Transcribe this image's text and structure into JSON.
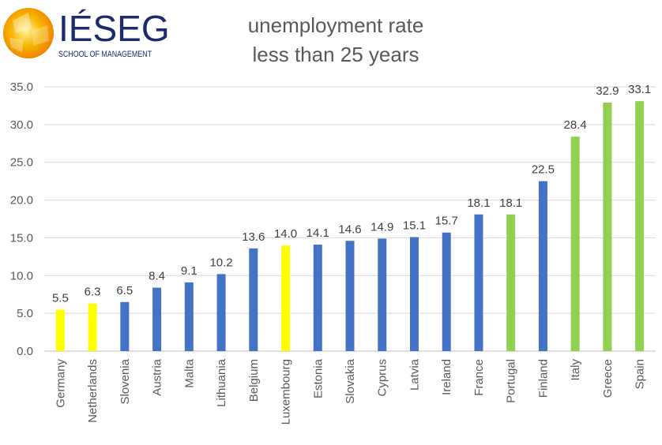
{
  "logo": {
    "brand": "IÉSEG",
    "subtitle": "SCHOOL OF MANAGEMENT"
  },
  "chart_data": {
    "type": "bar",
    "title": "unemployment rate",
    "subtitle": "less than 25 years",
    "xlabel": "",
    "ylabel": "",
    "ylim": [
      0,
      35
    ],
    "yticks": [
      "0.0",
      "5.0",
      "10.0",
      "15.0",
      "20.0",
      "25.0",
      "30.0",
      "35.0"
    ],
    "grid": true,
    "legend": "none",
    "data_labels": true,
    "categories": [
      "Germany",
      "Netherlands",
      "Slovenia",
      "Austria",
      "Malta",
      "Lithuania",
      "Belgium",
      "Luxembourg",
      "Estonia",
      "Slovakia",
      "Cyprus",
      "Latvia",
      "Ireland",
      "France",
      "Portugal",
      "Finland",
      "Italy",
      "Greece",
      "Spain"
    ],
    "values": [
      5.5,
      6.3,
      6.5,
      8.4,
      9.1,
      10.2,
      13.6,
      14.0,
      14.1,
      14.6,
      14.9,
      15.1,
      15.7,
      18.1,
      18.1,
      22.5,
      28.4,
      32.9,
      33.1
    ],
    "value_labels": [
      "5.5",
      "6.3",
      "6.5",
      "8.4",
      "9.1",
      "10.2",
      "13.6",
      "14.0",
      "14.1",
      "14.6",
      "14.9",
      "15.1",
      "15.7",
      "18.1",
      "18.1",
      "22.5",
      "28.4",
      "32.9",
      "33.1"
    ],
    "bar_colors": [
      "#ffff00",
      "#ffff00",
      "#4472c4",
      "#4472c4",
      "#4472c4",
      "#4472c4",
      "#4472c4",
      "#ffff00",
      "#4472c4",
      "#4472c4",
      "#4472c4",
      "#4472c4",
      "#4472c4",
      "#4472c4",
      "#92d050",
      "#4472c4",
      "#92d050",
      "#92d050",
      "#92d050"
    ]
  }
}
